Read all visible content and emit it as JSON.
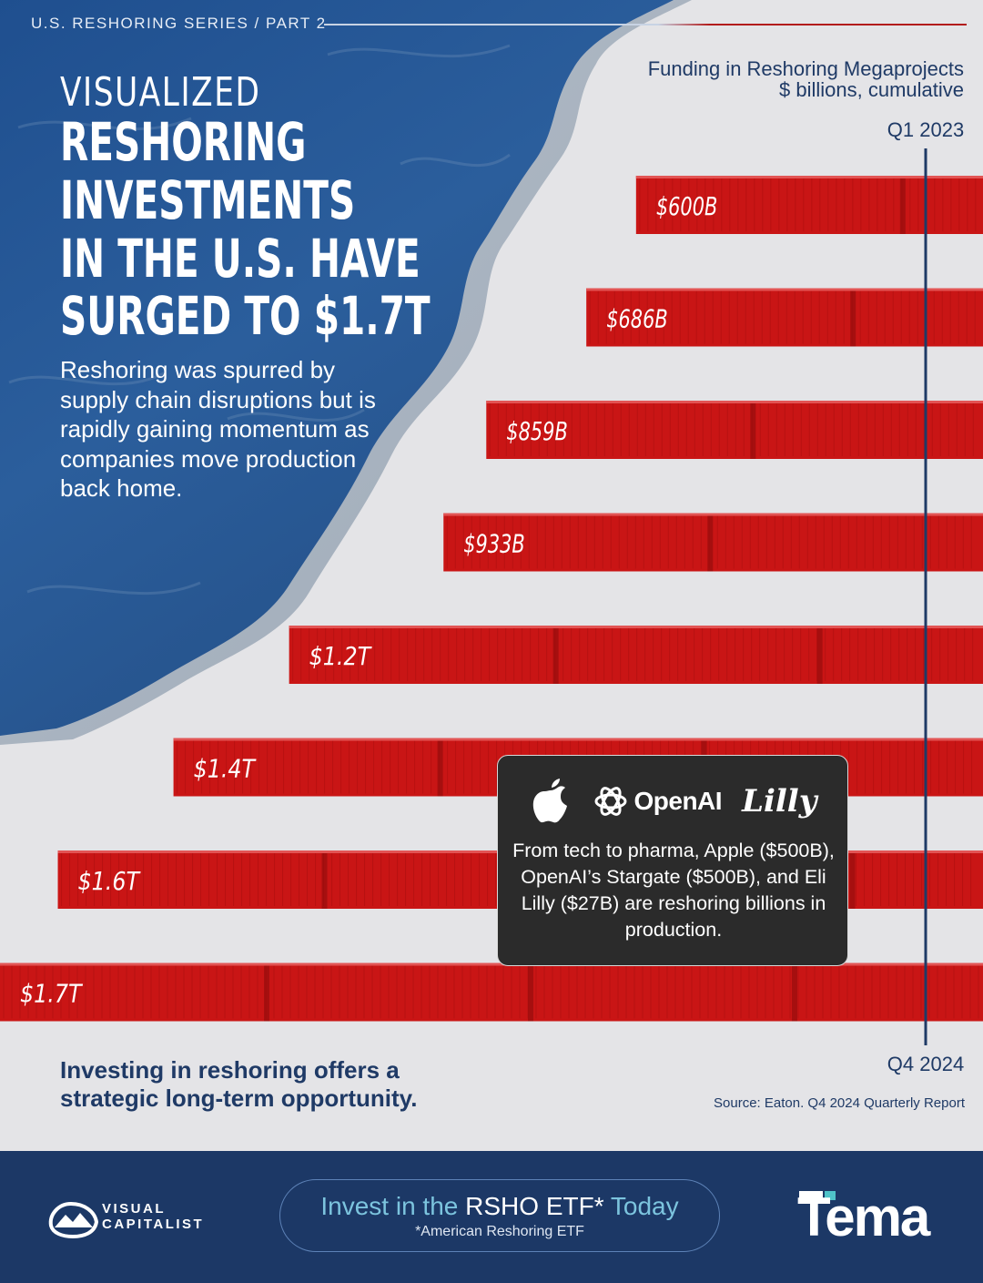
{
  "header": {
    "series_tag": "U.S. RESHORING SERIES / PART 2"
  },
  "headline": {
    "line1": "VISUALIZED",
    "line2": "RESHORING",
    "line3": "INVESTMENTS",
    "line4": "IN THE U.S. HAVE",
    "line5": "SURGED TO $1.7T"
  },
  "intro": "Reshoring was spurred by supply chain disruptions but is rapidly gaining momentum as companies move production back home.",
  "callout": {
    "logos": [
      "apple-logo",
      "openai-logo",
      "lilly-logo"
    ],
    "openai_label": "OpenAI",
    "lilly_label": "Lilly",
    "text": "From tech to pharma, Apple ($500B), OpenAI’s Stargate ($500B), and Eli Lilly ($27B) are reshoring billions in production."
  },
  "footnote": "Investing in reshoring offers a strategic long-term opportunity.",
  "source": "Source: Eaton. Q4 2024 Quarterly Report",
  "footer": {
    "vc_logo_line1": "VISUAL",
    "vc_logo_line2": "CAPITALIST",
    "cta_prefix": "Invest in the",
    "cta_emphasis": "RSHO ETF*",
    "cta_suffix": "Today",
    "cta_sub": "*American Reshoring ETF",
    "tema_logo": "Tema"
  },
  "colors": {
    "bar": "#c91515",
    "navy": "#1f3a66",
    "footer_bg": "#1c3866",
    "background": "#e4e4e7"
  },
  "chart_data": {
    "type": "bar",
    "orientation": "horizontal",
    "title": "Funding in Reshoring  Megaprojects",
    "subtitle": "$ billions, cumulative",
    "start_label": "Q1 2023",
    "end_label": "Q4 2024",
    "unit": "$ billions",
    "values": [
      600,
      686,
      859,
      933,
      1200,
      1400,
      1600,
      1700
    ],
    "labels": [
      "$600B",
      "$686B",
      "$859B",
      "$933B",
      "$1.2T",
      "$1.4T",
      "$1.6T",
      "$1.7T"
    ]
  }
}
